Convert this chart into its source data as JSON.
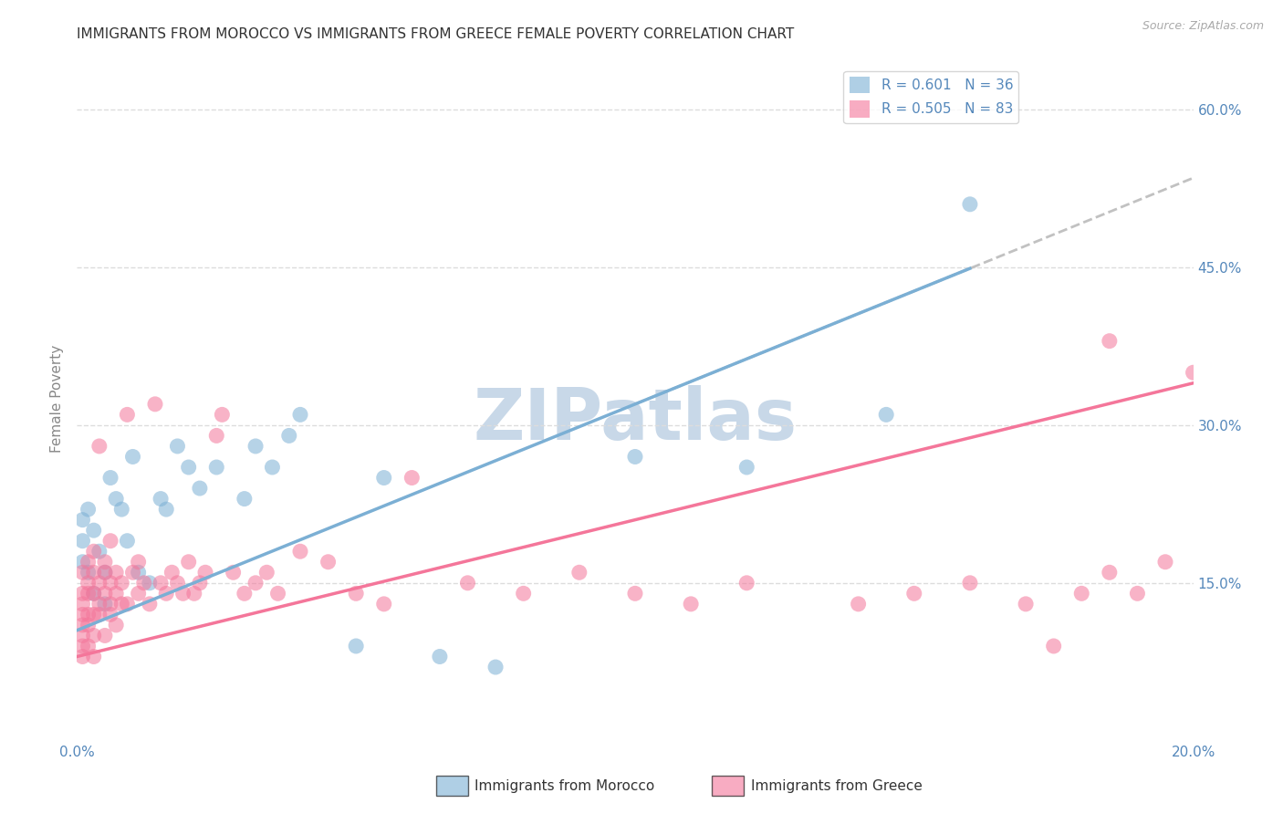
{
  "title": "IMMIGRANTS FROM MOROCCO VS IMMIGRANTS FROM GREECE FEMALE POVERTY CORRELATION CHART",
  "source": "Source: ZipAtlas.com",
  "ylabel": "Female Poverty",
  "xlim": [
    0.0,
    0.2
  ],
  "ylim": [
    0.0,
    0.65
  ],
  "xticks": [
    0.0,
    0.05,
    0.1,
    0.15,
    0.2
  ],
  "xtick_labels": [
    "0.0%",
    "",
    "",
    "",
    "20.0%"
  ],
  "ytick_positions_right": [
    0.15,
    0.3,
    0.45,
    0.6
  ],
  "ytick_labels_right": [
    "15.0%",
    "30.0%",
    "45.0%",
    "60.0%"
  ],
  "morocco_R": 0.601,
  "morocco_N": 36,
  "greece_R": 0.505,
  "greece_N": 83,
  "morocco_color": "#7BAFD4",
  "greece_color": "#F4769A",
  "morocco_x": [
    0.001,
    0.001,
    0.001,
    0.002,
    0.002,
    0.003,
    0.003,
    0.004,
    0.005,
    0.005,
    0.006,
    0.007,
    0.008,
    0.009,
    0.01,
    0.011,
    0.013,
    0.015,
    0.016,
    0.018,
    0.02,
    0.022,
    0.025,
    0.03,
    0.032,
    0.035,
    0.038,
    0.04,
    0.05,
    0.055,
    0.065,
    0.075,
    0.1,
    0.12,
    0.145,
    0.16
  ],
  "morocco_y": [
    0.17,
    0.19,
    0.21,
    0.16,
    0.22,
    0.2,
    0.14,
    0.18,
    0.13,
    0.16,
    0.25,
    0.23,
    0.22,
    0.19,
    0.27,
    0.16,
    0.15,
    0.23,
    0.22,
    0.28,
    0.26,
    0.24,
    0.26,
    0.23,
    0.28,
    0.26,
    0.29,
    0.31,
    0.09,
    0.25,
    0.08,
    0.07,
    0.27,
    0.26,
    0.31,
    0.51
  ],
  "greece_x": [
    0.001,
    0.001,
    0.001,
    0.001,
    0.001,
    0.001,
    0.001,
    0.001,
    0.002,
    0.002,
    0.002,
    0.002,
    0.002,
    0.002,
    0.003,
    0.003,
    0.003,
    0.003,
    0.003,
    0.003,
    0.004,
    0.004,
    0.004,
    0.004,
    0.005,
    0.005,
    0.005,
    0.005,
    0.006,
    0.006,
    0.006,
    0.006,
    0.007,
    0.007,
    0.007,
    0.008,
    0.008,
    0.009,
    0.009,
    0.01,
    0.011,
    0.011,
    0.012,
    0.013,
    0.014,
    0.015,
    0.016,
    0.017,
    0.018,
    0.019,
    0.02,
    0.021,
    0.022,
    0.023,
    0.025,
    0.026,
    0.028,
    0.03,
    0.032,
    0.034,
    0.036,
    0.04,
    0.045,
    0.05,
    0.055,
    0.06,
    0.07,
    0.08,
    0.09,
    0.1,
    0.11,
    0.12,
    0.14,
    0.15,
    0.16,
    0.17,
    0.18,
    0.185,
    0.19,
    0.195,
    0.2,
    0.185,
    0.175
  ],
  "greece_y": [
    0.14,
    0.12,
    0.16,
    0.1,
    0.08,
    0.11,
    0.09,
    0.13,
    0.17,
    0.11,
    0.09,
    0.15,
    0.12,
    0.14,
    0.16,
    0.1,
    0.12,
    0.08,
    0.14,
    0.18,
    0.28,
    0.12,
    0.15,
    0.13,
    0.17,
    0.14,
    0.1,
    0.16,
    0.13,
    0.19,
    0.15,
    0.12,
    0.14,
    0.11,
    0.16,
    0.15,
    0.13,
    0.31,
    0.13,
    0.16,
    0.14,
    0.17,
    0.15,
    0.13,
    0.32,
    0.15,
    0.14,
    0.16,
    0.15,
    0.14,
    0.17,
    0.14,
    0.15,
    0.16,
    0.29,
    0.31,
    0.16,
    0.14,
    0.15,
    0.16,
    0.14,
    0.18,
    0.17,
    0.14,
    0.13,
    0.25,
    0.15,
    0.14,
    0.16,
    0.14,
    0.13,
    0.15,
    0.13,
    0.14,
    0.15,
    0.13,
    0.14,
    0.16,
    0.14,
    0.17,
    0.35,
    0.38,
    0.09
  ],
  "morocco_line_intercept": 0.105,
  "morocco_line_slope": 2.15,
  "greece_line_intercept": 0.08,
  "greece_line_slope": 1.3,
  "watermark": "ZIPatlas",
  "watermark_color": "#C8D8E8",
  "background_color": "#FFFFFF",
  "grid_color": "#DDDDDD",
  "title_fontsize": 11,
  "tick_label_color": "#5588BB"
}
